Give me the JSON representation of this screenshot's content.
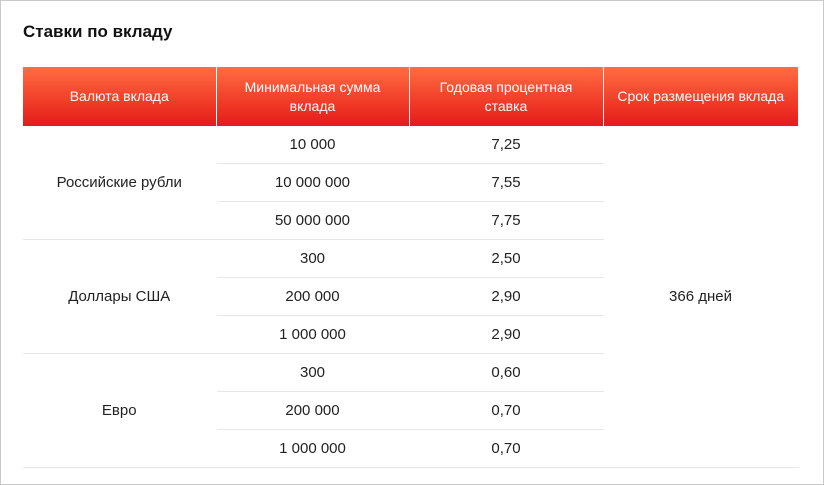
{
  "title": "Ставки по вкладу",
  "table": {
    "headers": [
      "Валюта вклада",
      "Минимальная сумма вклада",
      "Годовая процентная ставка",
      "Срок размещения вклада"
    ],
    "groups": [
      {
        "currency": "Российские рубли",
        "rows": [
          {
            "min_amount": "10 000",
            "rate": "7,25"
          },
          {
            "min_amount": "10 000 000",
            "rate": "7,55"
          },
          {
            "min_amount": "50 000 000",
            "rate": "7,75"
          }
        ]
      },
      {
        "currency": "Доллары США",
        "rows": [
          {
            "min_amount": "300",
            "rate": "2,50"
          },
          {
            "min_amount": "200 000",
            "rate": "2,90"
          },
          {
            "min_amount": "1 000 000",
            "rate": "2,90"
          }
        ]
      },
      {
        "currency": "Евро",
        "rows": [
          {
            "min_amount": "300",
            "rate": "0,60"
          },
          {
            "min_amount": "200 000",
            "rate": "0,70"
          },
          {
            "min_amount": "1 000 000",
            "rate": "0,70"
          }
        ]
      }
    ],
    "term": "366 дней"
  },
  "colors": {
    "header_top": "#ff6d42",
    "header_bottom": "#e41b1b",
    "header_text": "#ffffff",
    "row_divider": "#e6e6e6"
  }
}
